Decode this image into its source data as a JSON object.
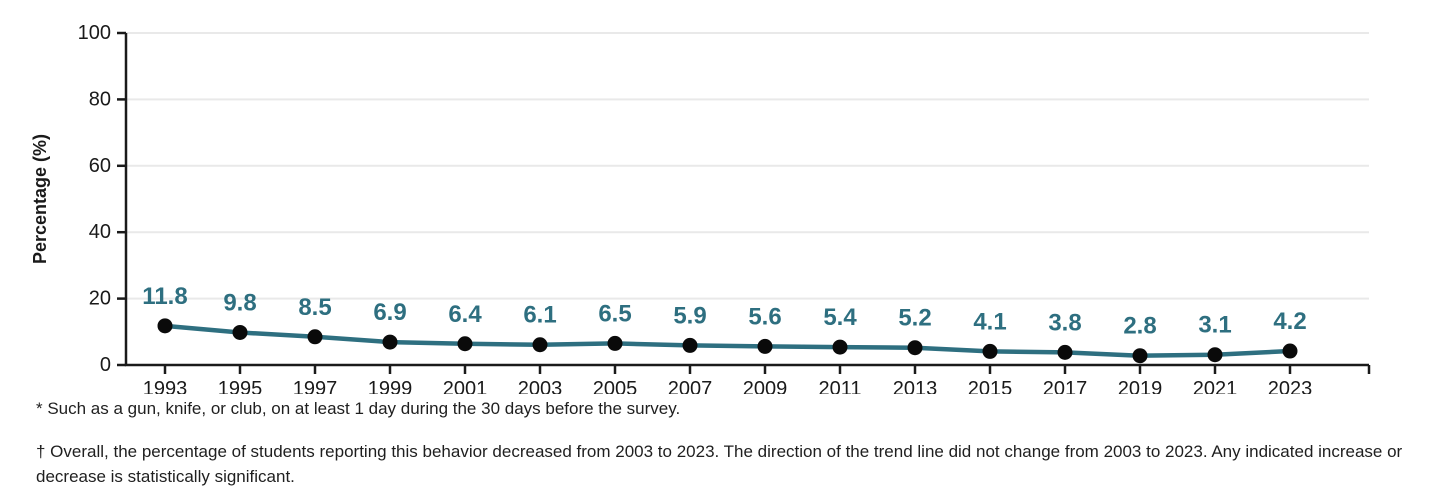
{
  "chart_data": {
    "type": "line",
    "x_tick_labels": [
      "1993",
      "1995",
      "1997",
      "1999",
      "2001",
      "2003",
      "2005",
      "2007",
      "2009",
      "2011",
      "2013",
      "2015",
      "2017",
      "2019",
      "2021",
      "2023"
    ],
    "values": [
      11.8,
      9.8,
      8.5,
      6.9,
      6.4,
      6.1,
      6.5,
      5.9,
      5.6,
      5.4,
      5.2,
      4.1,
      3.8,
      2.8,
      3.1,
      4.2
    ],
    "point_labels": [
      "11.8",
      "9.8",
      "8.5",
      "6.9",
      "6.4",
      "6.1",
      "6.5",
      "5.9",
      "5.6",
      "5.4",
      "5.2",
      "4.1",
      "3.8",
      "2.8",
      "3.1",
      "4.2"
    ],
    "title": "",
    "xlabel": "",
    "ylabel": "Percentage (%)",
    "ylim": [
      0,
      100
    ],
    "yticks": [
      0,
      20,
      40,
      60,
      80,
      100
    ],
    "grid": true,
    "legend": "none",
    "colors": {
      "line": "#2e6f80",
      "marker": "#0a0a0a",
      "data_label": "#2e6f80",
      "axis": "#1a1a1a",
      "gridline": "#e9e9e9",
      "tick_label": "#1a1a1a"
    }
  },
  "footnotes": [
    "* Such as a gun, knife, or club, on at least 1 day during the 30 days before the survey.",
    "† Overall, the percentage of students reporting this behavior decreased from 2003 to 2023. The direction of the trend line did not change from 2003 to 2023. Any indicated increase or decrease is statistically significant."
  ]
}
